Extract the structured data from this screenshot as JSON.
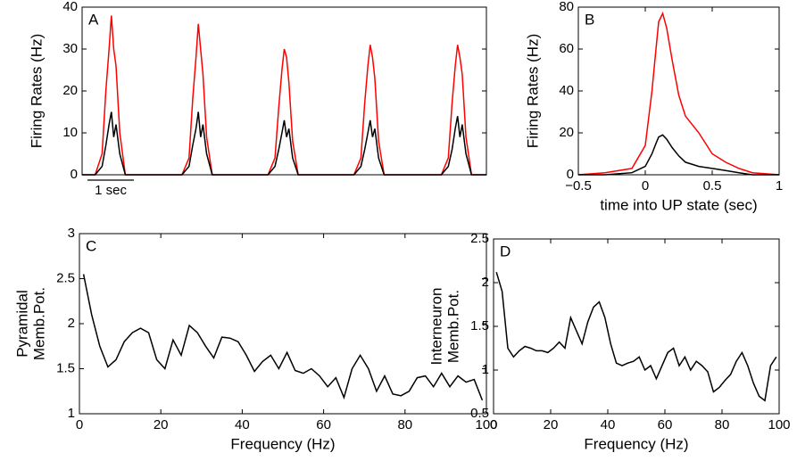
{
  "chart_data": [
    {
      "type": "line",
      "panel_label": "A",
      "ylabel": [
        "Firing Rates (Hz)"
      ],
      "x": [
        0,
        0.28,
        0.43,
        0.51,
        0.58,
        0.63,
        0.68,
        0.73,
        0.81,
        0.93,
        2.15,
        2.3,
        2.38,
        2.45,
        2.5,
        2.55,
        2.6,
        2.68,
        2.8,
        4.0,
        4.15,
        4.23,
        4.3,
        4.35,
        4.4,
        4.45,
        4.53,
        4.65,
        5.85,
        6.0,
        6.08,
        6.15,
        6.2,
        6.25,
        6.3,
        6.38,
        6.5,
        7.73,
        7.88,
        7.96,
        8.03,
        8.08,
        8.13,
        8.18,
        8.26,
        8.38,
        8.7
      ],
      "series": [
        {
          "color": "#ff0000",
          "values": [
            0,
            0,
            5,
            20,
            30,
            38,
            30,
            26,
            10,
            0,
            0,
            4,
            18,
            28,
            36,
            30,
            24,
            9,
            0,
            0,
            4,
            16,
            25,
            30,
            28,
            22,
            8,
            0,
            0,
            4,
            17,
            26,
            31,
            28,
            23,
            8,
            0,
            0,
            4,
            17,
            26,
            31,
            28,
            24,
            9,
            0,
            0
          ]
        },
        {
          "color": "#000000",
          "values": [
            0,
            0,
            2,
            7,
            12,
            15,
            9,
            12,
            5,
            0,
            0,
            2,
            7,
            11,
            15,
            9,
            12,
            5,
            0,
            0,
            2,
            6,
            10,
            13,
            9,
            11,
            4,
            0,
            0,
            2,
            6,
            10,
            13,
            9,
            11,
            4,
            0,
            0,
            2,
            6,
            11,
            14,
            9,
            12,
            5,
            0,
            0
          ]
        }
      ],
      "xlim": [
        0,
        8.7
      ],
      "ylim": [
        0,
        40
      ],
      "yticks": [
        0,
        10,
        20,
        30,
        40
      ],
      "scale_bar": {
        "label": "1 sec",
        "length": 1
      }
    },
    {
      "type": "line",
      "panel_label": "B",
      "ylabel": [
        "Firing Rates (Hz)"
      ],
      "xlabel": "time into UP state (sec)",
      "x": [
        -0.5,
        -0.3,
        -0.1,
        0,
        0.05,
        0.08,
        0.1,
        0.13,
        0.16,
        0.2,
        0.25,
        0.3,
        0.4,
        0.5,
        0.6,
        0.7,
        0.8,
        1.0
      ],
      "series": [
        {
          "color": "#ff0000",
          "values": [
            0,
            1,
            3,
            14,
            40,
            60,
            73,
            77,
            70,
            55,
            38,
            28,
            20,
            10,
            6,
            3,
            1,
            0
          ]
        },
        {
          "color": "#000000",
          "values": [
            0,
            0,
            1,
            4,
            10,
            15,
            18,
            19,
            17,
            13,
            9,
            6,
            4,
            3,
            2,
            1,
            0,
            0
          ]
        }
      ],
      "xlim": [
        -0.5,
        1
      ],
      "xticks": [
        {
          "value": -0.5,
          "label": "−0.5"
        },
        0,
        0.5,
        1
      ],
      "ylim": [
        0,
        80
      ],
      "yticks": [
        0,
        20,
        40,
        60,
        80
      ]
    },
    {
      "type": "line",
      "panel_label": "C",
      "ylabel": [
        "Pyramidal",
        "Memb.Pot."
      ],
      "xlabel": "Frequency (Hz)",
      "x": [
        1,
        3,
        5,
        7,
        9,
        11,
        13,
        15,
        17,
        19,
        21,
        23,
        25,
        27,
        29,
        31,
        33,
        35,
        37,
        39,
        41,
        43,
        45,
        47,
        49,
        51,
        53,
        55,
        57,
        59,
        61,
        63,
        65,
        67,
        69,
        71,
        73,
        75,
        77,
        79,
        81,
        83,
        85,
        87,
        89,
        91,
        93,
        95,
        97,
        99
      ],
      "series": [
        {
          "color": "#000000",
          "values": [
            2.55,
            2.1,
            1.75,
            1.52,
            1.6,
            1.8,
            1.9,
            1.95,
            1.9,
            1.6,
            1.5,
            1.82,
            1.65,
            1.98,
            1.9,
            1.75,
            1.62,
            1.85,
            1.84,
            1.8,
            1.65,
            1.47,
            1.58,
            1.65,
            1.5,
            1.68,
            1.48,
            1.45,
            1.5,
            1.42,
            1.3,
            1.4,
            1.18,
            1.5,
            1.65,
            1.5,
            1.25,
            1.42,
            1.22,
            1.2,
            1.25,
            1.4,
            1.42,
            1.3,
            1.45,
            1.3,
            1.42,
            1.35,
            1.38,
            1.15
          ]
        }
      ],
      "xlim": [
        0,
        100
      ],
      "xticks": [
        0,
        20,
        40,
        60,
        80,
        100
      ],
      "ylim": [
        1,
        3
      ],
      "yticks": [
        1,
        1.5,
        2,
        2.5,
        3
      ]
    },
    {
      "type": "line",
      "panel_label": "D",
      "ylabel": [
        "Interneuron",
        "Memb.Pot."
      ],
      "xlabel": "Frequency (Hz)",
      "x": [
        1,
        3,
        5,
        7,
        9,
        11,
        13,
        15,
        17,
        19,
        21,
        23,
        25,
        27,
        29,
        31,
        33,
        35,
        37,
        39,
        41,
        43,
        45,
        47,
        49,
        51,
        53,
        55,
        57,
        59,
        61,
        63,
        65,
        67,
        69,
        71,
        73,
        75,
        77,
        79,
        81,
        83,
        85,
        87,
        89,
        91,
        93,
        95,
        97,
        99
      ],
      "series": [
        {
          "color": "#000000",
          "values": [
            2.12,
            1.9,
            1.25,
            1.15,
            1.22,
            1.27,
            1.25,
            1.22,
            1.22,
            1.2,
            1.25,
            1.32,
            1.25,
            1.6,
            1.45,
            1.3,
            1.55,
            1.72,
            1.78,
            1.6,
            1.3,
            1.08,
            1.05,
            1.08,
            1.1,
            1.15,
            1.0,
            1.05,
            0.9,
            1.05,
            1.2,
            1.25,
            1.05,
            1.15,
            1.0,
            1.1,
            1.05,
            0.98,
            0.75,
            0.8,
            0.88,
            0.95,
            1.1,
            1.2,
            1.05,
            0.85,
            0.7,
            0.65,
            1.05,
            1.15
          ]
        }
      ],
      "xlim": [
        0,
        100
      ],
      "xticks": [
        0,
        20,
        40,
        60,
        80,
        100
      ],
      "ylim": [
        0.5,
        2.5
      ],
      "yticks": [
        0.5,
        1,
        1.5,
        2,
        2.5
      ]
    }
  ]
}
